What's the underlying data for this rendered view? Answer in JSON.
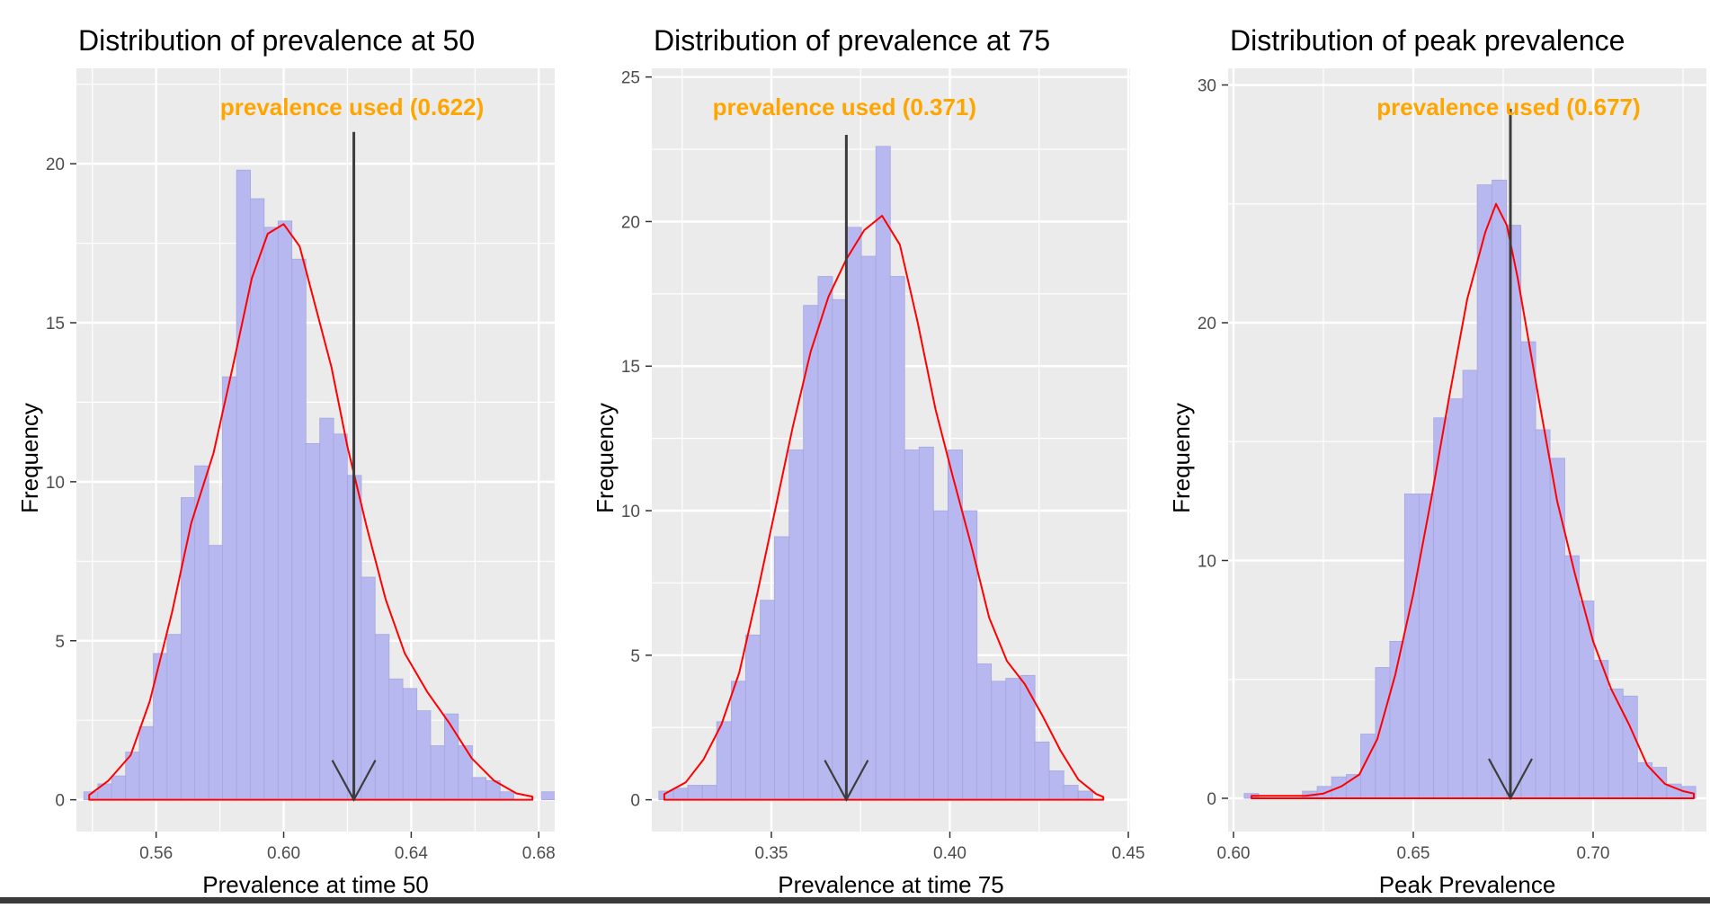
{
  "colors": {
    "panel_bg": "#EBEBEB",
    "grid": "#FFFFFF",
    "bar_fill": "#B8B8F0",
    "bar_stroke": "#A6A6DC",
    "density": "#FF0000",
    "arrow": "#3C3C3C",
    "annotation": "#FFA500",
    "tick_text": "#4D4D4D",
    "title_text": "#000000"
  },
  "chart_data": [
    {
      "type": "bar",
      "title": "Distribution of prevalence at 50",
      "xlabel": "Prevalence at time 50",
      "ylabel": "Frequency",
      "xlim": [
        0.535,
        0.685
      ],
      "ylim": [
        -1.0,
        23.0
      ],
      "x_ticks": [
        0.56,
        0.6,
        0.64,
        0.68
      ],
      "x_tick_labels": [
        "0.56",
        "0.60",
        "0.64",
        "0.68"
      ],
      "y_ticks": [
        0,
        5,
        10,
        15,
        20
      ],
      "y_tick_labels": [
        "0",
        "5",
        "10",
        "15",
        "20"
      ],
      "annotation": "prevalence used (0.622)",
      "reference_value": 0.622,
      "arrow_top": 21.0,
      "bin_width": 0.00435,
      "bins_x": [
        0.5395,
        0.5439,
        0.5482,
        0.5526,
        0.5569,
        0.5613,
        0.5656,
        0.57,
        0.5743,
        0.5787,
        0.583,
        0.5874,
        0.5917,
        0.5961,
        0.6004,
        0.6048,
        0.6091,
        0.6135,
        0.6178,
        0.6222,
        0.6265,
        0.6309,
        0.6352,
        0.6396,
        0.6439,
        0.6483,
        0.6526,
        0.657,
        0.6613,
        0.6657,
        0.67,
        0.6744,
        0.6787,
        0.6831
      ],
      "bins_y": [
        0.25,
        0.5,
        0.75,
        1.5,
        2.3,
        4.6,
        5.2,
        9.5,
        10.5,
        8.0,
        13.3,
        19.8,
        18.9,
        18.0,
        18.2,
        17.0,
        11.2,
        12.0,
        11.5,
        10.2,
        7.0,
        5.2,
        3.8,
        3.5,
        2.8,
        1.7,
        2.7,
        1.7,
        0.7,
        0.6,
        0.25,
        0.0,
        0.0,
        0.25
      ],
      "density_x": [
        0.539,
        0.545,
        0.552,
        0.558,
        0.565,
        0.571,
        0.578,
        0.584,
        0.59,
        0.595,
        0.6,
        0.605,
        0.61,
        0.615,
        0.62,
        0.626,
        0.632,
        0.638,
        0.645,
        0.652,
        0.659,
        0.666,
        0.673,
        0.678
      ],
      "density_y": [
        0.15,
        0.6,
        1.4,
        3.1,
        5.9,
        8.7,
        10.9,
        13.6,
        16.4,
        17.8,
        18.1,
        17.4,
        15.5,
        13.6,
        11.1,
        8.6,
        6.3,
        4.6,
        3.4,
        2.4,
        1.3,
        0.6,
        0.2,
        0.1
      ]
    },
    {
      "type": "bar",
      "title": "Distribution of prevalence at 75",
      "xlabel": "Prevalence at time 75",
      "ylabel": "Frequency",
      "xlim": [
        0.3165,
        0.4505
      ],
      "ylim": [
        -1.1,
        25.3
      ],
      "x_ticks": [
        0.35,
        0.4,
        0.45
      ],
      "x_tick_labels": [
        "0.35",
        "0.40",
        "0.45"
      ],
      "y_ticks": [
        0,
        5,
        10,
        15,
        20,
        25
      ],
      "y_tick_labels": [
        "0",
        "5",
        "10",
        "15",
        "20",
        "25"
      ],
      "annotation": "prevalence used (0.371)",
      "reference_value": 0.371,
      "arrow_top": 23.0,
      "bin_width": 0.00405,
      "bins_x": [
        0.3205,
        0.3246,
        0.3286,
        0.3327,
        0.3367,
        0.3408,
        0.3448,
        0.3489,
        0.3529,
        0.357,
        0.361,
        0.3651,
        0.3691,
        0.3732,
        0.3772,
        0.3813,
        0.3853,
        0.3894,
        0.3934,
        0.3975,
        0.4015,
        0.4056,
        0.4096,
        0.4137,
        0.4177,
        0.4218,
        0.4258,
        0.4299,
        0.4339,
        0.438
      ],
      "bins_y": [
        0.3,
        0.4,
        0.5,
        0.5,
        2.7,
        4.1,
        5.7,
        6.9,
        9.1,
        12.1,
        17.1,
        18.1,
        17.3,
        19.8,
        18.8,
        22.6,
        18.1,
        12.1,
        12.2,
        10.0,
        12.1,
        10.0,
        4.7,
        4.1,
        4.2,
        4.3,
        2.0,
        1.0,
        0.5,
        0.3
      ],
      "density_x": [
        0.32,
        0.326,
        0.331,
        0.336,
        0.341,
        0.346,
        0.351,
        0.356,
        0.361,
        0.366,
        0.371,
        0.376,
        0.381,
        0.386,
        0.391,
        0.396,
        0.401,
        0.406,
        0.411,
        0.416,
        0.421,
        0.426,
        0.431,
        0.436,
        0.441,
        0.443
      ],
      "density_y": [
        0.2,
        0.6,
        1.4,
        2.6,
        4.4,
        7.1,
        10.0,
        12.9,
        15.5,
        17.4,
        18.7,
        19.7,
        20.2,
        19.2,
        16.5,
        13.5,
        11.1,
        8.8,
        6.3,
        4.8,
        4.0,
        2.9,
        1.7,
        0.7,
        0.2,
        0.1
      ]
    },
    {
      "type": "bar",
      "title": "Distribution of peak prevalence",
      "xlabel": "Peak Prevalence",
      "ylabel": "Frequency",
      "xlim": [
        0.5985,
        0.7315
      ],
      "ylim": [
        -1.4,
        30.7
      ],
      "x_ticks": [
        0.6,
        0.65,
        0.7
      ],
      "x_tick_labels": [
        "0.60",
        "0.65",
        "0.70"
      ],
      "y_ticks": [
        0,
        10,
        20,
        30
      ],
      "y_tick_labels": [
        "0",
        "10",
        "20",
        "30"
      ],
      "annotation": "prevalence used (0.677)",
      "reference_value": 0.677,
      "arrow_top": 29.0,
      "bin_width": 0.00405,
      "bins_x": [
        0.605,
        0.6091,
        0.6131,
        0.6172,
        0.6212,
        0.6253,
        0.6293,
        0.6334,
        0.6374,
        0.6415,
        0.6455,
        0.6496,
        0.6536,
        0.6577,
        0.6617,
        0.6658,
        0.6698,
        0.6739,
        0.6779,
        0.682,
        0.686,
        0.6901,
        0.6941,
        0.6982,
        0.7022,
        0.7063,
        0.7103,
        0.7144,
        0.7184,
        0.7225,
        0.7265
      ],
      "bins_y": [
        0.2,
        0.0,
        0.0,
        0.0,
        0.3,
        0.5,
        0.9,
        1.0,
        2.7,
        5.5,
        6.6,
        12.8,
        12.8,
        16.0,
        16.8,
        18.0,
        25.8,
        26.0,
        24.1,
        19.2,
        15.5,
        14.3,
        10.2,
        8.3,
        5.8,
        4.6,
        4.3,
        1.5,
        1.3,
        0.6,
        0.5
      ],
      "density_x": [
        0.605,
        0.61,
        0.615,
        0.62,
        0.625,
        0.63,
        0.635,
        0.64,
        0.645,
        0.65,
        0.655,
        0.66,
        0.665,
        0.67,
        0.673,
        0.676,
        0.679,
        0.682,
        0.685,
        0.69,
        0.695,
        0.7,
        0.705,
        0.71,
        0.715,
        0.72,
        0.725,
        0.728
      ],
      "density_y": [
        0.1,
        0.1,
        0.1,
        0.1,
        0.2,
        0.5,
        1.0,
        2.5,
        5.2,
        8.6,
        12.6,
        16.9,
        21.0,
        23.8,
        25.0,
        24.1,
        21.9,
        19.3,
        16.7,
        12.5,
        9.4,
        6.6,
        4.6,
        3.1,
        1.4,
        0.6,
        0.3,
        0.2
      ]
    }
  ]
}
